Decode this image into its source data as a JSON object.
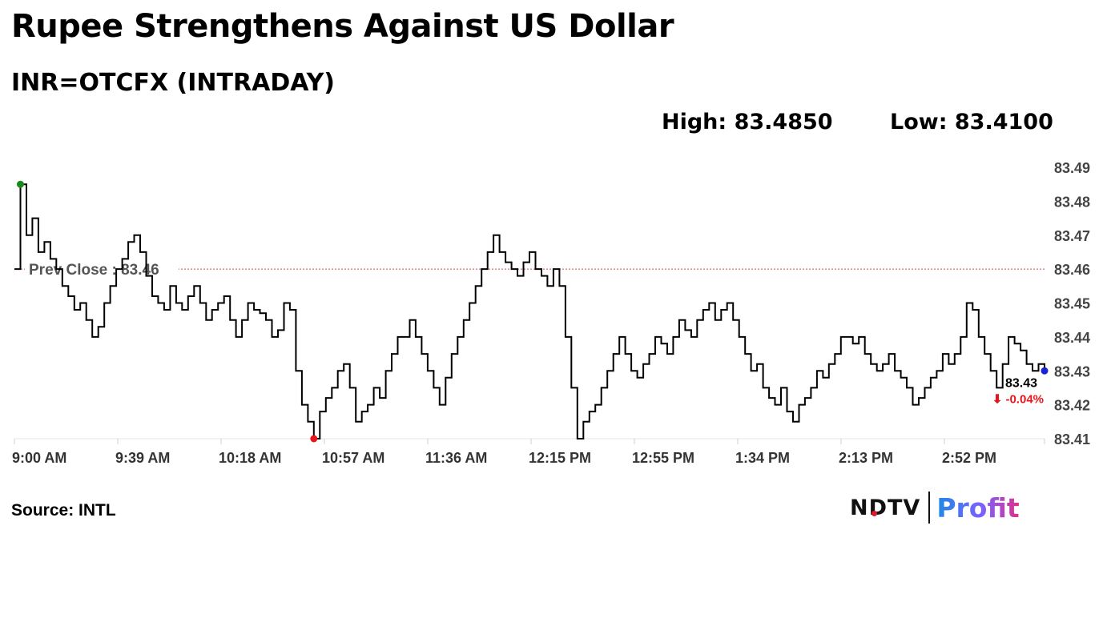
{
  "header": {
    "title": "Rupee Strengthens Against US Dollar",
    "subtitle": "INR=OTCFX (INTRADAY)",
    "high": "High: 83.4850",
    "low": "Low: 83.4100"
  },
  "footer": {
    "source": "Source: INTL",
    "logo_left": "NDTV",
    "logo_right": "Profit"
  },
  "colors": {
    "line": "#000000",
    "high_marker": "#1a8a1a",
    "low_marker": "#e8141b",
    "last_marker": "#1a22d6",
    "prev_close_line": "#d8473b",
    "change_text": "#e8141b"
  },
  "chart_data": {
    "type": "line",
    "title": "INR=OTCFX (INTRADAY)",
    "ylim": [
      83.41,
      83.49
    ],
    "yticks": [
      "83.49",
      "83.48",
      "83.47",
      "83.46",
      "83.45",
      "83.44",
      "83.43",
      "83.42",
      "83.41"
    ],
    "xticks": [
      "9:00 AM",
      "9:39 AM",
      "10:18 AM",
      "10:57 AM",
      "11:36 AM",
      "12:15 PM",
      "12:55 PM",
      "1:34 PM",
      "2:13 PM",
      "2:52 PM"
    ],
    "x_axis_position": "bottom",
    "y_axis_position": "right",
    "grid": false,
    "reference_line": {
      "label": "Prev Close : 83.46",
      "value": 83.46
    },
    "last": {
      "label": "83.43",
      "change": "⬇ -0.04%",
      "value": 83.43
    },
    "series": [
      {
        "x_start": "9:00 AM",
        "x_end": "3:30 PM",
        "values": [
          83.46,
          83.485,
          83.47,
          83.475,
          83.465,
          83.468,
          83.463,
          83.46,
          83.455,
          83.452,
          83.448,
          83.45,
          83.445,
          83.44,
          83.443,
          83.45,
          83.455,
          83.46,
          83.463,
          83.468,
          83.47,
          83.465,
          83.458,
          83.452,
          83.45,
          83.448,
          83.455,
          83.45,
          83.448,
          83.452,
          83.455,
          83.45,
          83.445,
          83.448,
          83.45,
          83.452,
          83.445,
          83.44,
          83.445,
          83.45,
          83.448,
          83.447,
          83.445,
          83.44,
          83.442,
          83.45,
          83.448,
          83.43,
          83.42,
          83.415,
          83.41,
          83.418,
          83.422,
          83.425,
          83.43,
          83.432,
          83.425,
          83.415,
          83.418,
          83.42,
          83.425,
          83.422,
          83.43,
          83.435,
          83.44,
          83.44,
          83.445,
          83.44,
          83.435,
          83.43,
          83.425,
          83.42,
          83.428,
          83.435,
          83.44,
          83.445,
          83.45,
          83.455,
          83.46,
          83.465,
          83.47,
          83.465,
          83.462,
          83.46,
          83.458,
          83.462,
          83.465,
          83.46,
          83.458,
          83.455,
          83.46,
          83.455,
          83.44,
          83.425,
          83.41,
          83.415,
          83.418,
          83.42,
          83.425,
          83.43,
          83.435,
          83.44,
          83.435,
          83.43,
          83.428,
          83.432,
          83.435,
          83.44,
          83.438,
          83.435,
          83.44,
          83.445,
          83.442,
          83.44,
          83.445,
          83.448,
          83.45,
          83.445,
          83.448,
          83.45,
          83.445,
          83.44,
          83.435,
          83.43,
          83.432,
          83.425,
          83.422,
          83.42,
          83.425,
          83.418,
          83.415,
          83.42,
          83.422,
          83.425,
          83.43,
          83.428,
          83.432,
          83.435,
          83.44,
          83.44,
          83.438,
          83.44,
          83.435,
          83.432,
          83.43,
          83.432,
          83.435,
          83.43,
          83.428,
          83.425,
          83.42,
          83.422,
          83.425,
          83.428,
          83.43,
          83.435,
          83.432,
          83.435,
          83.44,
          83.45,
          83.448,
          83.44,
          83.435,
          83.43,
          83.425,
          83.432,
          83.44,
          83.438,
          83.436,
          83.432,
          83.43,
          83.432,
          83.43
        ]
      }
    ]
  }
}
